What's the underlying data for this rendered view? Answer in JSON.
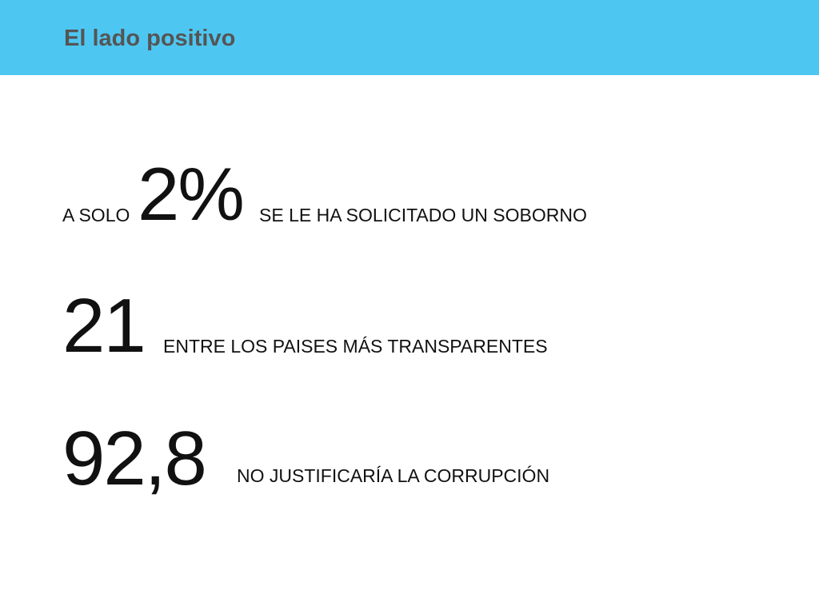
{
  "header": {
    "title": "El lado positivo",
    "bar_color": "#4dc7f2",
    "title_color": "#555555"
  },
  "stats": [
    {
      "prefix": "A SOLO",
      "value": "2%",
      "label": "SE LE HA SOLICITADO UN SOBORNO"
    },
    {
      "value": "21",
      "label": "ENTRE LOS PAISES MÁS TRANSPARENTES"
    },
    {
      "value": "92,8",
      "label": "NO JUSTIFICARÍA LA CORRUPCIÓN"
    }
  ]
}
